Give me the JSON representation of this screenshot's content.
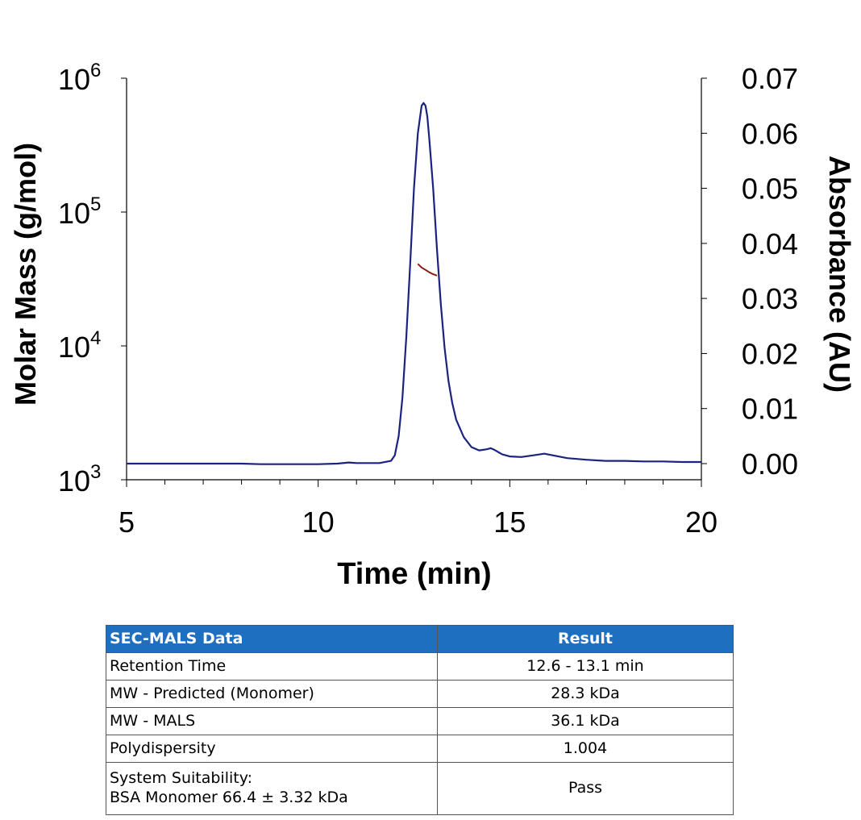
{
  "chart_data": {
    "type": "line",
    "xlabel": "Time (min)",
    "ylabel_left": "Molar Mass (g/mol)",
    "ylabel_right": "Absorbance (AU)",
    "xlim": [
      5,
      20
    ],
    "x_ticks": [
      "5",
      "10",
      "15",
      "20"
    ],
    "ylim_left": [
      1000,
      1000000
    ],
    "y_left_scale": "log",
    "y_left_ticks": [
      {
        "base": "10",
        "exp": "3"
      },
      {
        "base": "10",
        "exp": "4"
      },
      {
        "base": "10",
        "exp": "5"
      },
      {
        "base": "10",
        "exp": "6"
      }
    ],
    "ylim_right": [
      -0.0005,
      0.07
    ],
    "y_right_ticks": [
      "0.00",
      "0.01",
      "0.02",
      "0.03",
      "0.04",
      "0.05",
      "0.06",
      "0.07"
    ],
    "series": [
      {
        "axis": "right",
        "color": "#1a237e",
        "x": [
          5.0,
          6.0,
          7.0,
          8.0,
          8.5,
          9.0,
          10.0,
          10.5,
          10.8,
          11.0,
          11.3,
          11.6,
          11.9,
          12.0,
          12.1,
          12.2,
          12.3,
          12.4,
          12.5,
          12.6,
          12.7,
          12.75,
          12.8,
          12.85,
          12.9,
          13.0,
          13.1,
          13.2,
          13.3,
          13.4,
          13.5,
          13.6,
          13.8,
          14.0,
          14.2,
          14.4,
          14.5,
          14.6,
          14.8,
          15.0,
          15.3,
          15.6,
          15.9,
          16.2,
          16.5,
          17.0,
          17.5,
          18.0,
          18.5,
          19.0,
          19.5,
          20.0
        ],
        "y": [
          0.0,
          0.0,
          0.0,
          0.0,
          -0.0001,
          -0.0001,
          -0.0001,
          0.0,
          0.0002,
          0.0001,
          0.0001,
          0.0001,
          0.0005,
          0.0015,
          0.005,
          0.012,
          0.023,
          0.036,
          0.05,
          0.06,
          0.065,
          0.0655,
          0.065,
          0.063,
          0.059,
          0.05,
          0.039,
          0.029,
          0.021,
          0.015,
          0.011,
          0.008,
          0.0048,
          0.003,
          0.0024,
          0.0026,
          0.0028,
          0.0025,
          0.0017,
          0.0013,
          0.0012,
          0.0015,
          0.0018,
          0.0014,
          0.001,
          0.0007,
          0.0005,
          0.0005,
          0.0004,
          0.0004,
          0.0003,
          0.0003
        ]
      },
      {
        "axis": "left",
        "color": "#8b1a1a",
        "x": [
          12.6,
          12.7,
          12.8,
          12.9,
          13.0,
          13.1
        ],
        "y": [
          41000,
          38500,
          37000,
          35500,
          34300,
          33500
        ]
      }
    ]
  },
  "table": {
    "headers": [
      "SEC-MALS Data",
      "Result"
    ],
    "header_color": "#1f6fc1",
    "rows": [
      {
        "label": "Retention Time",
        "value": "12.6 - 13.1 min"
      },
      {
        "label": "MW - Predicted (Monomer)",
        "value": "28.3 kDa"
      },
      {
        "label": "MW - MALS",
        "value": "36.1 kDa"
      },
      {
        "label": "Polydispersity",
        "value": "1.004"
      },
      {
        "label": "System Suitability:",
        "label2": "BSA Monomer 66.4 ± 3.32 kDa",
        "value": "Pass"
      }
    ]
  }
}
